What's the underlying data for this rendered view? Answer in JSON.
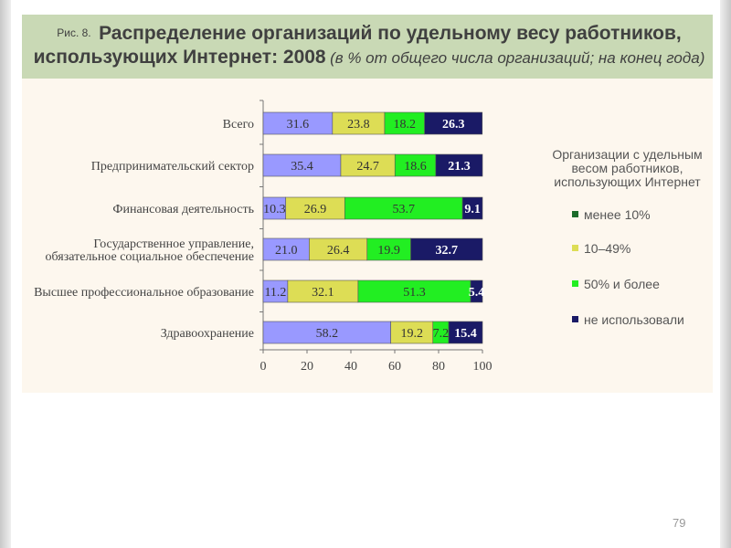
{
  "slide": {
    "fig_label": "Рис. 8.",
    "title_main": "Распределение организаций по удельному весу работников, использующих Интернет: 2008",
    "title_sub": "(в % от общего числа организаций; на конец года)",
    "page_number": "79"
  },
  "chart_data": {
    "type": "bar",
    "orientation": "horizontal",
    "stacked": true,
    "categories": [
      "Всего",
      "Предпринимательский сектор",
      "Финансовая деятельность",
      "Государственное управление, обязательное социальное обеспечение",
      "Высшее профессиональное образование",
      "Здравоохранение"
    ],
    "category_lines": [
      [
        "Всего"
      ],
      [
        "Предпринимательский сектор"
      ],
      [
        "Финансовая деятельность"
      ],
      [
        "Государственное управление,",
        "обязательное социальное обеспечение"
      ],
      [
        "Высшее профессиональное образование"
      ],
      [
        "Здравоохранение"
      ]
    ],
    "series": [
      {
        "name": "менее 10%",
        "color": "#9999ff",
        "values": [
          31.6,
          35.4,
          10.3,
          21.0,
          11.2,
          58.2
        ]
      },
      {
        "name": "10–49%",
        "color": "#dddd55",
        "values": [
          23.8,
          24.7,
          26.9,
          26.4,
          32.1,
          19.2
        ]
      },
      {
        "name": "50% и более",
        "color": "#22ee22",
        "values": [
          18.2,
          18.6,
          53.7,
          19.9,
          51.3,
          7.2
        ]
      },
      {
        "name": "не использовали",
        "color": "#1a1a66",
        "values": [
          26.3,
          21.3,
          9.1,
          32.7,
          5.4,
          15.4
        ]
      }
    ],
    "data_labels": [
      [
        "31.6",
        "35.4",
        "10.3",
        "21.0",
        "11.2",
        "58.2"
      ],
      [
        "23.8",
        "24.7",
        "26.9",
        "26.4",
        "32.1",
        "19.2"
      ],
      [
        "18.2",
        "18.6",
        "53.7",
        "19.9",
        "51.3",
        "7.2"
      ],
      [
        "26.3",
        "21.3",
        "9.1",
        "32.7",
        "5.4",
        "15.4"
      ]
    ],
    "xlim": [
      0,
      100
    ],
    "xticks": [
      "0",
      "20",
      "40",
      "60",
      "80",
      "100"
    ],
    "legend": {
      "title": "Организации с удельным весом работников, использующих Интернет",
      "placement": "right",
      "swatch_colors": [
        "#1b6b2a",
        "#dddd55",
        "#22ee22",
        "#1a1a66"
      ]
    }
  }
}
